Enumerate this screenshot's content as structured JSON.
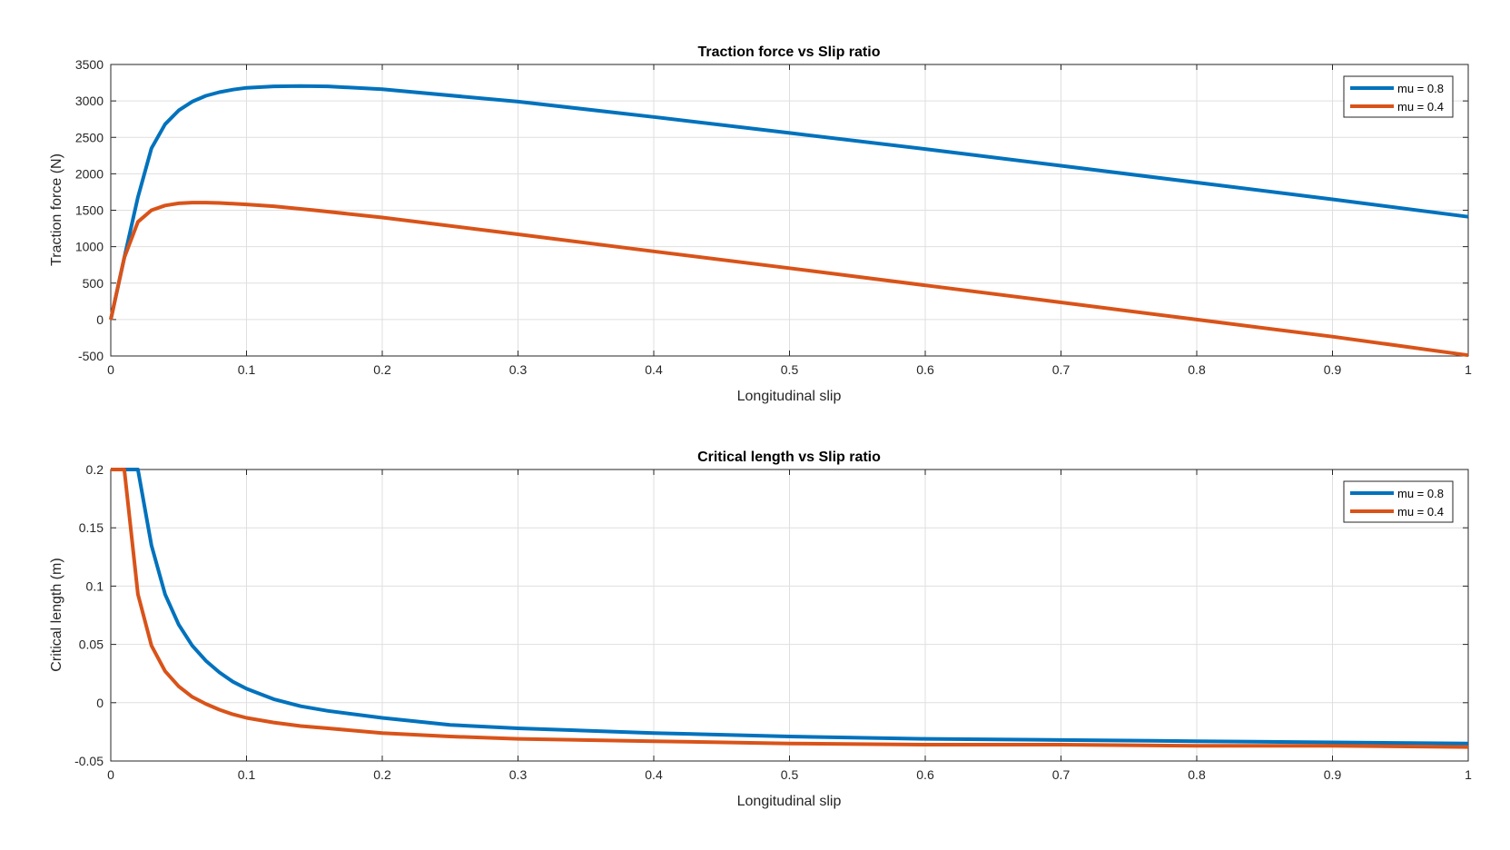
{
  "figure": {
    "background": "#ffffff"
  },
  "chart_data": [
    {
      "type": "line",
      "title": "Traction force vs Slip ratio",
      "xlabel": "Longitudinal slip",
      "ylabel": "Traction force (N)",
      "xlim": [
        0,
        1
      ],
      "ylim": [
        -500,
        3500
      ],
      "xticks": [
        0,
        0.1,
        0.2,
        0.3,
        0.4,
        0.5,
        0.6,
        0.7,
        0.8,
        0.9,
        1
      ],
      "xtick_labels": [
        "0",
        "0.1",
        "0.2",
        "0.3",
        "0.4",
        "0.5",
        "0.6",
        "0.7",
        "0.8",
        "0.9",
        "1"
      ],
      "yticks": [
        -500,
        0,
        500,
        1000,
        1500,
        2000,
        2500,
        3000,
        3500
      ],
      "ytick_labels": [
        "-500",
        "0",
        "500",
        "1000",
        "1500",
        "2000",
        "2500",
        "3000",
        "3500"
      ],
      "grid": true,
      "legend_position": "top-right",
      "series": [
        {
          "name": "mu = 0.8",
          "color": "#0072BD",
          "x": [
            0,
            0.01,
            0.02,
            0.03,
            0.04,
            0.05,
            0.06,
            0.07,
            0.08,
            0.09,
            0.1,
            0.12,
            0.14,
            0.16,
            0.2,
            0.3,
            0.4,
            0.5,
            0.6,
            0.7,
            0.8,
            0.9,
            1.0
          ],
          "y": [
            0,
            850,
            1680,
            2350,
            2680,
            2870,
            2990,
            3070,
            3120,
            3155,
            3180,
            3200,
            3205,
            3200,
            3160,
            2990,
            2780,
            2560,
            2340,
            2110,
            1880,
            1650,
            1410
          ]
        },
        {
          "name": "mu = 0.4",
          "color": "#D95319",
          "x": [
            0,
            0.01,
            0.02,
            0.03,
            0.04,
            0.05,
            0.06,
            0.07,
            0.08,
            0.1,
            0.12,
            0.15,
            0.2,
            0.3,
            0.4,
            0.5,
            0.6,
            0.7,
            0.8,
            0.9,
            1.0
          ],
          "y": [
            0,
            850,
            1340,
            1500,
            1565,
            1595,
            1605,
            1605,
            1600,
            1580,
            1555,
            1500,
            1400,
            1170,
            935,
            705,
            470,
            235,
            0,
            -235,
            -490
          ]
        }
      ]
    },
    {
      "type": "line",
      "title": "Critical length vs Slip ratio",
      "xlabel": "Longitudinal slip",
      "ylabel": "Critical length (m)",
      "xlim": [
        0,
        1
      ],
      "ylim": [
        -0.05,
        0.2
      ],
      "xticks": [
        0,
        0.1,
        0.2,
        0.3,
        0.4,
        0.5,
        0.6,
        0.7,
        0.8,
        0.9,
        1
      ],
      "xtick_labels": [
        "0",
        "0.1",
        "0.2",
        "0.3",
        "0.4",
        "0.5",
        "0.6",
        "0.7",
        "0.8",
        "0.9",
        "1"
      ],
      "yticks": [
        -0.05,
        0,
        0.05,
        0.1,
        0.15,
        0.2
      ],
      "ytick_labels": [
        "-0.05",
        "0",
        "0.05",
        "0.1",
        "0.15",
        "0.2"
      ],
      "grid": true,
      "legend_position": "top-right",
      "series": [
        {
          "name": "mu = 0.8",
          "color": "#0072BD",
          "x": [
            0,
            0.01,
            0.02,
            0.03,
            0.04,
            0.05,
            0.06,
            0.07,
            0.08,
            0.09,
            0.1,
            0.12,
            0.14,
            0.16,
            0.2,
            0.25,
            0.3,
            0.4,
            0.5,
            0.6,
            0.7,
            0.8,
            0.9,
            1.0
          ],
          "y": [
            0.2,
            0.2,
            0.2,
            0.135,
            0.093,
            0.067,
            0.049,
            0.036,
            0.026,
            0.018,
            0.012,
            0.003,
            -0.003,
            -0.007,
            -0.013,
            -0.019,
            -0.022,
            -0.026,
            -0.029,
            -0.031,
            -0.032,
            -0.033,
            -0.034,
            -0.035
          ]
        },
        {
          "name": "mu = 0.4",
          "color": "#D95319",
          "x": [
            0,
            0.01,
            0.02,
            0.03,
            0.04,
            0.05,
            0.06,
            0.07,
            0.08,
            0.09,
            0.1,
            0.12,
            0.14,
            0.16,
            0.2,
            0.25,
            0.3,
            0.4,
            0.5,
            0.6,
            0.7,
            0.8,
            0.9,
            1.0
          ],
          "y": [
            0.2,
            0.2,
            0.093,
            0.049,
            0.027,
            0.014,
            0.005,
            -0.001,
            -0.006,
            -0.01,
            -0.013,
            -0.017,
            -0.02,
            -0.022,
            -0.026,
            -0.029,
            -0.031,
            -0.033,
            -0.035,
            -0.036,
            -0.036,
            -0.037,
            -0.037,
            -0.038
          ]
        }
      ]
    }
  ]
}
